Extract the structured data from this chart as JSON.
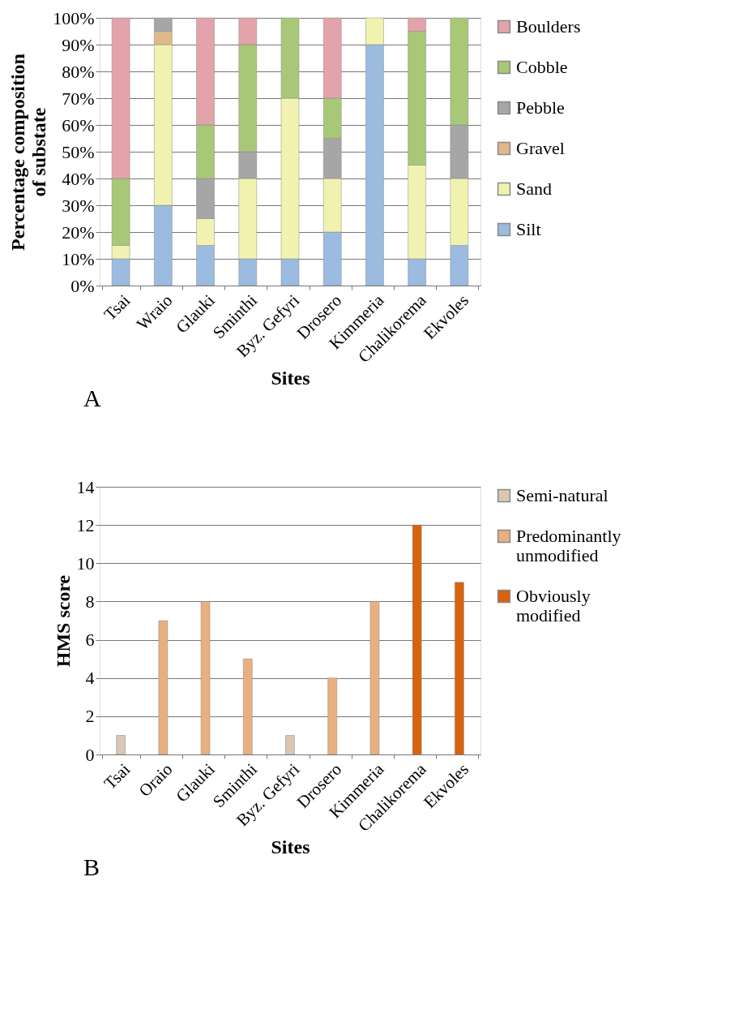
{
  "chart_data": [
    {
      "type": "bar",
      "stacked": true,
      "xlabel": "Sites",
      "ylabel": "Percentage composition of substate",
      "categories": [
        "Tsai",
        "Wraio",
        "Glauki",
        "Sminthi",
        "Byz. Gefyri",
        "Drosero",
        "Kimmeria",
        "Chalikorema",
        "Ekvoles"
      ],
      "series": [
        {
          "name": "Silt",
          "color": "#9bbbe0",
          "values": [
            10,
            30,
            15,
            10,
            10,
            20,
            90,
            10,
            15
          ]
        },
        {
          "name": "Sand",
          "color": "#f2f2b0",
          "values": [
            5,
            60,
            10,
            30,
            60,
            20,
            10,
            35,
            25
          ]
        },
        {
          "name": "Gravel",
          "color": "#e0b88a",
          "values": [
            null,
            5,
            null,
            null,
            null,
            null,
            null,
            null,
            null
          ]
        },
        {
          "name": "Pebble",
          "color": "#a6a6a6",
          "values": [
            null,
            5,
            15,
            10,
            null,
            15,
            null,
            null,
            20
          ]
        },
        {
          "name": "Cobble",
          "color": "#a8c878",
          "values": [
            25,
            null,
            20,
            40,
            30,
            15,
            null,
            50,
            40
          ]
        },
        {
          "name": "Boulders",
          "color": "#e3a3aa",
          "values": [
            60,
            null,
            40,
            10,
            null,
            30,
            null,
            5,
            null
          ]
        }
      ],
      "ylim": [
        0,
        100
      ],
      "yticks": [
        {
          "value": 0,
          "label": "0%"
        },
        {
          "value": 10,
          "label": "10%"
        },
        {
          "value": 20,
          "label": "20%"
        },
        {
          "value": 30,
          "label": "30%"
        },
        {
          "value": 40,
          "label": "40%"
        },
        {
          "value": 50,
          "label": "50%"
        },
        {
          "value": 60,
          "label": "60%"
        },
        {
          "value": 70,
          "label": "70%"
        },
        {
          "value": 80,
          "label": "80%"
        },
        {
          "value": 90,
          "label": "90%"
        },
        {
          "value": 100,
          "label": "100%"
        }
      ],
      "grid": "y",
      "legend": "right",
      "annotations": [
        "A"
      ]
    },
    {
      "type": "bar",
      "xlabel": "Sites",
      "ylabel": "HMS score",
      "categories": [
        "Tsai",
        "Oraio",
        "Glauki",
        "Sminthi",
        "Byz. Gefyri",
        "Drosero",
        "Kimmeria",
        "Chalikorema",
        "Ekvoles"
      ],
      "series": [
        {
          "name": "Semi-natural",
          "color": "#d9c6b6",
          "values": [
            1,
            null,
            null,
            null,
            1,
            null,
            null,
            null,
            null
          ]
        },
        {
          "name": "Predominantly unmodified",
          "color": "#e8b07e",
          "values": [
            null,
            7,
            8,
            5,
            null,
            4,
            8,
            null,
            null
          ]
        },
        {
          "name": "Obviously modified",
          "color": "#d8620e",
          "values": [
            null,
            null,
            null,
            null,
            null,
            null,
            null,
            12,
            9
          ]
        }
      ],
      "ylim": [
        0,
        14
      ],
      "yticks": [
        0,
        2,
        4,
        6,
        8,
        10,
        12,
        14
      ],
      "grid": "y",
      "legend": "right",
      "annotations": [
        "B"
      ]
    }
  ]
}
